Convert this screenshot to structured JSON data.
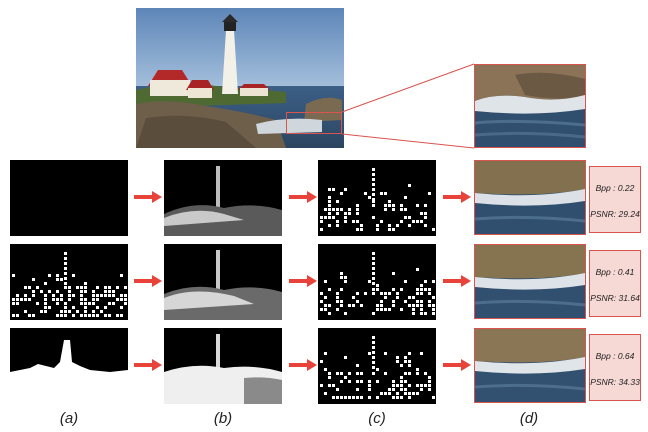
{
  "figure": {
    "captions": [
      "(a)",
      "(b)",
      "(c)",
      "(d)"
    ],
    "rows": [
      {
        "bpp_label": "Bpp : 0.22",
        "psnr_label": "PSNR: 29.24"
      },
      {
        "bpp_label": "Bpp : 0.41",
        "psnr_label": "PSNR: 31.64"
      },
      {
        "bpp_label": "Bpp : 0.64",
        "psnr_label": "PSNR: 34.33"
      }
    ],
    "colors": {
      "accent": "#d9534f",
      "metric_box_fill": "#f6d8d4",
      "mask_bg": "#000000",
      "mask_fg": "#ffffff"
    }
  }
}
